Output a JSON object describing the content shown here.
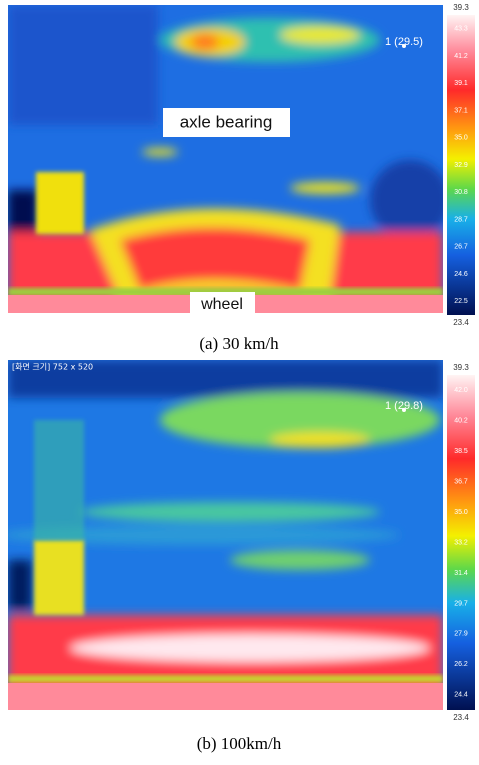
{
  "panels": [
    {
      "caption": "(a)  30  km/h",
      "scale_top": "39.3",
      "scale_bottom": "23.4",
      "scale_ticks": [
        "43.3",
        "41.2",
        "39.1",
        "37.1",
        "35.0",
        "32.9",
        "30.8",
        "28.7",
        "26.7",
        "24.6",
        "22.5"
      ],
      "spot_label": "1 (29.5)",
      "annotations": [
        "axle bearing",
        "wheel"
      ]
    },
    {
      "caption": "(b)  100km/h",
      "scale_top": "39.3",
      "scale_bottom": "23.4",
      "scale_ticks": [
        "42.0",
        "40.2",
        "38.5",
        "36.7",
        "35.0",
        "33.2",
        "31.4",
        "29.7",
        "27.9",
        "26.2",
        "24.4"
      ],
      "spot_label": "1 (29.8)",
      "header_text": "[화면 크기] 752 x 520"
    }
  ]
}
